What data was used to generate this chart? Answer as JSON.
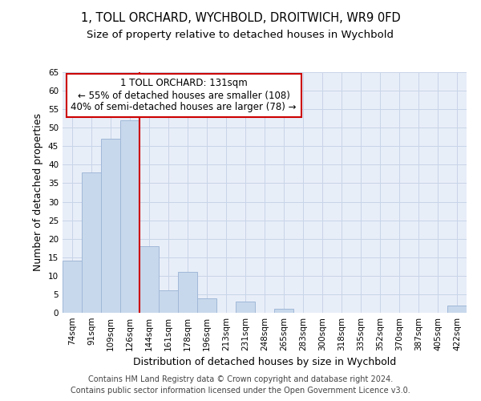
{
  "title1": "1, TOLL ORCHARD, WYCHBOLD, DROITWICH, WR9 0FD",
  "title2": "Size of property relative to detached houses in Wychbold",
  "xlabel": "Distribution of detached houses by size in Wychbold",
  "ylabel": "Number of detached properties",
  "categories": [
    "74sqm",
    "91sqm",
    "109sqm",
    "126sqm",
    "144sqm",
    "161sqm",
    "178sqm",
    "196sqm",
    "213sqm",
    "231sqm",
    "248sqm",
    "265sqm",
    "283sqm",
    "300sqm",
    "318sqm",
    "335sqm",
    "352sqm",
    "370sqm",
    "387sqm",
    "405sqm",
    "422sqm"
  ],
  "values": [
    14,
    38,
    47,
    52,
    18,
    6,
    11,
    4,
    0,
    3,
    0,
    1,
    0,
    0,
    0,
    0,
    0,
    0,
    0,
    0,
    2
  ],
  "bar_color": "#c8d8ec",
  "bar_edge_color": "#a0b8d8",
  "subject_label": "1 TOLL ORCHARD: 131sqm",
  "annotation_line1": "← 55% of detached houses are smaller (108)",
  "annotation_line2": "40% of semi-detached houses are larger (78) →",
  "red_line_color": "#cc0000",
  "annotation_box_facecolor": "#ffffff",
  "annotation_box_edgecolor": "#cc0000",
  "ylim": [
    0,
    65
  ],
  "yticks": [
    0,
    5,
    10,
    15,
    20,
    25,
    30,
    35,
    40,
    45,
    50,
    55,
    60,
    65
  ],
  "grid_color": "#c8d4e8",
  "background_color": "#e8eef8",
  "footer1": "Contains HM Land Registry data © Crown copyright and database right 2024.",
  "footer2": "Contains public sector information licensed under the Open Government Licence v3.0.",
  "title_fontsize": 10.5,
  "subtitle_fontsize": 9.5,
  "axis_label_fontsize": 9,
  "tick_fontsize": 7.5,
  "annotation_fontsize": 8.5,
  "footer_fontsize": 7
}
